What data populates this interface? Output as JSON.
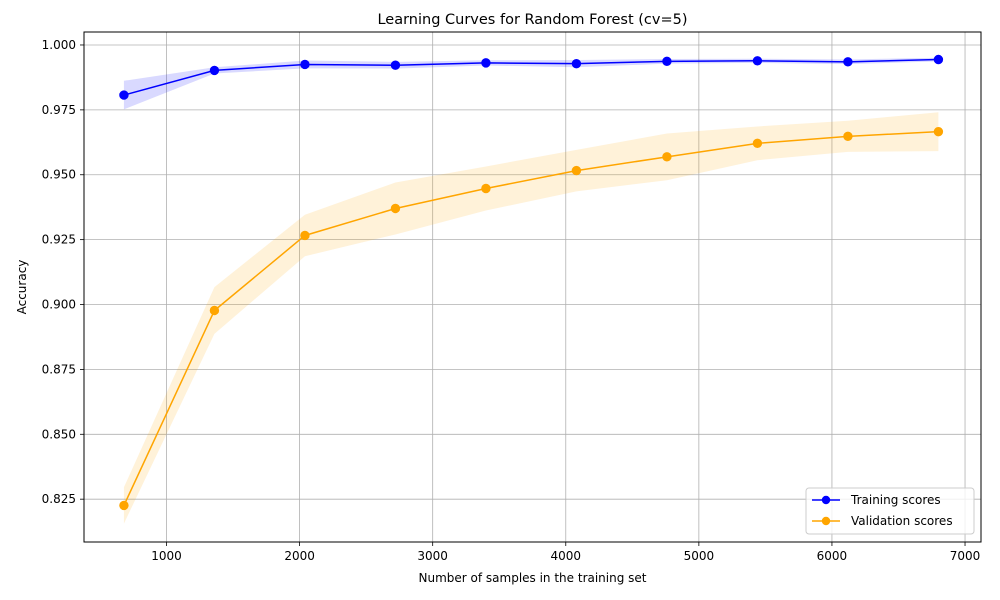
{
  "chart_data": {
    "type": "line",
    "title": "Learning Curves for Random Forest (cv=5)",
    "xlabel": "Number of samples in the training set",
    "ylabel": "Accuracy",
    "xlim": [
      380,
      7120
    ],
    "ylim": [
      0.8085,
      1.005
    ],
    "xticks": [
      1000,
      2000,
      3000,
      4000,
      5000,
      6000,
      7000
    ],
    "xtick_labels": [
      "1000",
      "2000",
      "3000",
      "4000",
      "5000",
      "6000",
      "7000"
    ],
    "yticks": [
      0.825,
      0.85,
      0.875,
      0.9,
      0.925,
      0.95,
      0.975,
      1.0
    ],
    "ytick_labels": [
      "0.825",
      "0.850",
      "0.875",
      "0.900",
      "0.925",
      "0.950",
      "0.975",
      "1.000"
    ],
    "grid": true,
    "legend_position": "lower-right",
    "x": [
      680,
      1360,
      2040,
      2720,
      3400,
      4080,
      4760,
      5440,
      6120,
      6800
    ],
    "series": [
      {
        "name": "Training scores",
        "color": "#0000ff",
        "band_color": "#0000ff",
        "marker": "circle",
        "values": [
          0.9807,
          0.9902,
          0.9925,
          0.9922,
          0.9931,
          0.9928,
          0.9937,
          0.9939,
          0.9935,
          0.9944
        ],
        "std": [
          0.0055,
          0.0012,
          0.0015,
          0.0013,
          0.001,
          0.0014,
          0.0009,
          0.0008,
          0.0009,
          0.0007
        ]
      },
      {
        "name": "Validation scores",
        "color": "#ffa500",
        "band_color": "#ffa500",
        "marker": "circle",
        "values": [
          0.8226,
          0.8977,
          0.9266,
          0.937,
          0.9447,
          0.9516,
          0.9569,
          0.9621,
          0.9648,
          0.9666
        ],
        "std": [
          0.007,
          0.009,
          0.008,
          0.01,
          0.0085,
          0.008,
          0.009,
          0.0065,
          0.006,
          0.0075
        ]
      }
    ]
  }
}
